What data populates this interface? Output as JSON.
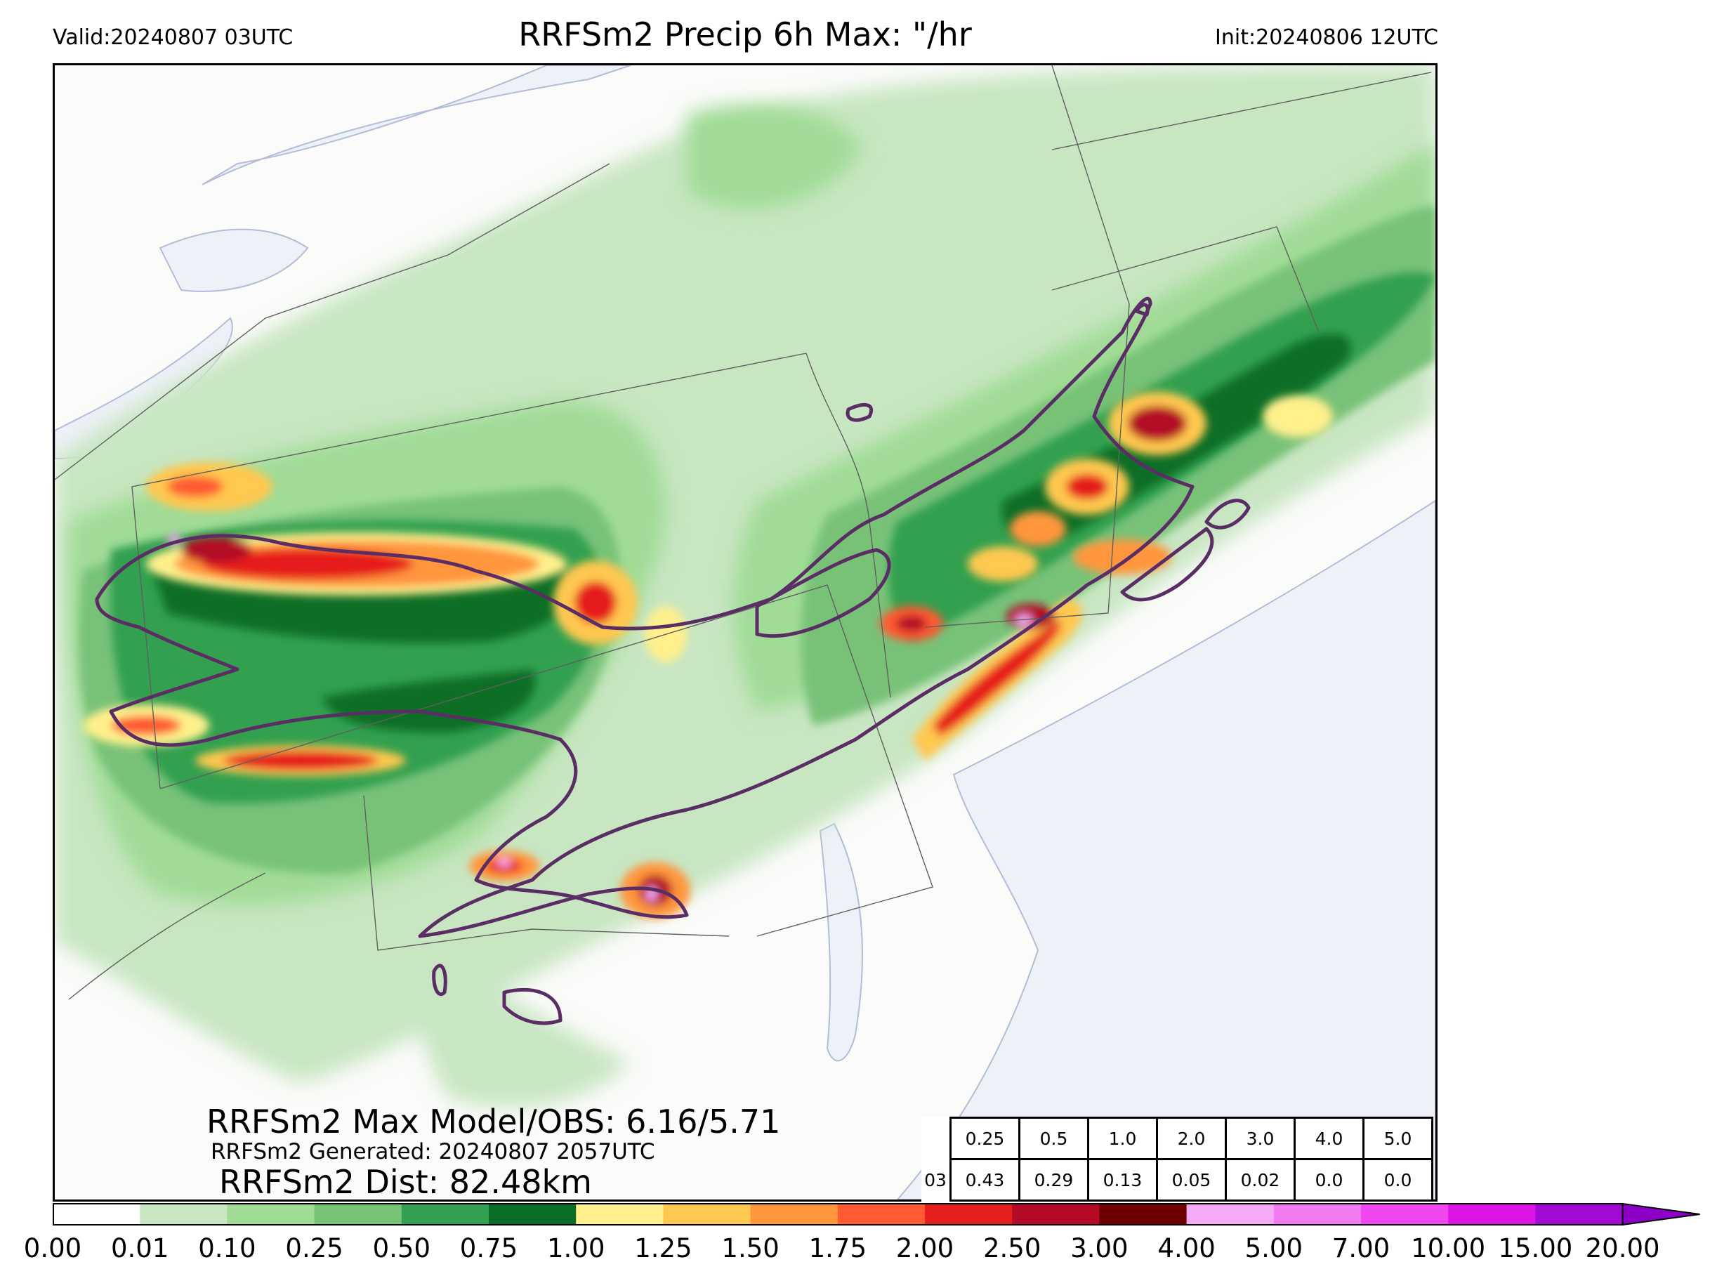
{
  "header": {
    "valid": "Valid:20240807 03UTC",
    "title": "RRFSm2 Precip 6h Max: \"/hr",
    "init": "Init:20240806 12UTC"
  },
  "stats": {
    "max_model_obs": "RRFSm2 Max Model/OBS: 6.16/5.71",
    "generated": "RRFSm2 Generated: 20240807 2057UTC",
    "dist": "RRFSm2 Dist: 82.48km"
  },
  "threshold_table": {
    "row_label": "03",
    "thresholds": [
      "0.25",
      "0.5",
      "1.0",
      "2.0",
      "3.0",
      "4.0",
      "5.0"
    ],
    "values": [
      "0.43",
      "0.29",
      "0.13",
      "0.05",
      "0.02",
      "0.0",
      "0.0"
    ]
  },
  "colorbar": {
    "ticks": [
      "0.00",
      "0.01",
      "0.10",
      "0.25",
      "0.50",
      "0.75",
      "1.00",
      "1.25",
      "1.50",
      "1.75",
      "2.00",
      "2.50",
      "3.00",
      "4.00",
      "5.00",
      "7.00",
      "10.00",
      "15.00",
      "20.00"
    ],
    "colors": [
      "#ffffff",
      "#c8e6c2",
      "#a0dc96",
      "#78c278",
      "#32a050",
      "#0a6e28",
      "#fff08c",
      "#ffc850",
      "#ff963c",
      "#ff5a32",
      "#e61e1e",
      "#b40a28",
      "#6e0000",
      "#f5aaf5",
      "#f07cf0",
      "#f046f0",
      "#dc14e6",
      "#a00ad2"
    ],
    "extend_color": "#8c00c8"
  },
  "map_colors": {
    "background": "#fbfbfa",
    "water": "#eef1f8",
    "border": "#606060",
    "obs_contour": "#5a2e64"
  }
}
